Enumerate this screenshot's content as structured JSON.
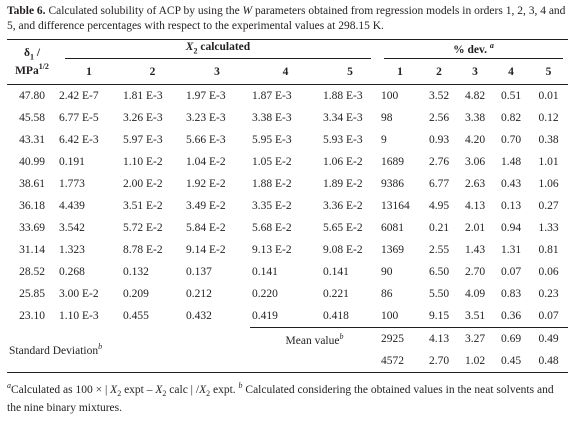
{
  "caption": [
    "Table 6.",
    " Calculated solubility of ACP by using the ",
    "W",
    " parameters obtained from regression models in orders 1, 2, 3, 4 and 5, and difference percentages with respect to the experimental values at 298.15 K."
  ],
  "table": {
    "header": {
      "first_column": [
        "δ",
        "1",
        " /",
        "MPa",
        "1/2"
      ],
      "group_calculated": [
        "X",
        "2",
        " calculated"
      ],
      "group_dev": [
        "% dev.",
        "a"
      ],
      "orders": [
        "1",
        "2",
        "3",
        "4",
        "5",
        "1",
        "2",
        "3",
        "4",
        "5"
      ]
    },
    "rows": [
      [
        "47.80",
        "2.42 E-7",
        "1.81 E-3",
        "1.97 E-3",
        "1.87 E-3",
        "1.88 E-3",
        "100",
        "3.52",
        "4.82",
        "0.51",
        "0.01"
      ],
      [
        "45.58",
        "6.77 E-5",
        "3.26 E-3",
        "3.23 E-3",
        "3.38 E-3",
        "3.34 E-3",
        "98",
        "2.56",
        "3.38",
        "0.82",
        "0.12"
      ],
      [
        "43.31",
        "6.42 E-3",
        "5.97 E-3",
        "5.66 E-3",
        "5.95 E-3",
        "5.93 E-3",
        "9",
        "0.93",
        "4.20",
        "0.70",
        "0.38"
      ],
      [
        "40.99",
        "0.191",
        "1.10 E-2",
        "1.04 E-2",
        "1.05 E-2",
        "1.06 E-2",
        "1689",
        "2.76",
        "3.06",
        "1.48",
        "1.01"
      ],
      [
        "38.61",
        "1.773",
        "2.00 E-2",
        "1.92 E-2",
        "1.88 E-2",
        "1.89 E-2",
        "9386",
        "6.77",
        "2.63",
        "0.43",
        "1.06"
      ],
      [
        "36.18",
        "4.439",
        "3.51 E-2",
        "3.49 E-2",
        "3.35 E-2",
        "3.36 E-2",
        "13164",
        "4.95",
        "4.13",
        "0.13",
        "0.27"
      ],
      [
        "33.69",
        "3.542",
        "5.72 E-2",
        "5.84 E-2",
        "5.68 E-2",
        "5.65 E-2",
        "6081",
        "0.21",
        "2.01",
        "0.94",
        "1.33"
      ],
      [
        "31.14",
        "1.323",
        "8.78 E-2",
        "9.14 E-2",
        "9.13 E-2",
        "9.08 E-2",
        "1369",
        "2.55",
        "1.43",
        "1.31",
        "0.81"
      ],
      [
        "28.52",
        "0.268",
        "0.132",
        "0.137",
        "0.141",
        "0.141",
        "90",
        "6.50",
        "2.70",
        "0.07",
        "0.06"
      ],
      [
        "25.85",
        "3.00 E-2",
        "0.209",
        "0.212",
        "0.220",
        "0.221",
        "86",
        "5.50",
        "4.09",
        "0.83",
        "0.23"
      ],
      [
        "23.10",
        "1.10 E-3",
        "0.455",
        "0.432",
        "0.419",
        "0.418",
        "100",
        "9.15",
        "3.51",
        "0.36",
        "0.07"
      ]
    ],
    "mean": {
      "label": [
        "Mean value",
        "b"
      ],
      "values": [
        "2925",
        "4.13",
        "3.27",
        "0.69",
        "0.49"
      ]
    },
    "std": {
      "label": [
        "Standard Deviation",
        "b"
      ],
      "values": [
        "4572",
        "2.70",
        "1.02",
        "0.45",
        "0.48"
      ]
    }
  },
  "footnote": [
    "a",
    "Calculated as 100 × | ",
    "X",
    "2",
    " expt – ",
    "X",
    "2",
    " calc | /",
    "X",
    "2",
    " expt. ",
    "b",
    " Calculated considering the obtained values in the neat solvents and the nine binary mixtures."
  ]
}
